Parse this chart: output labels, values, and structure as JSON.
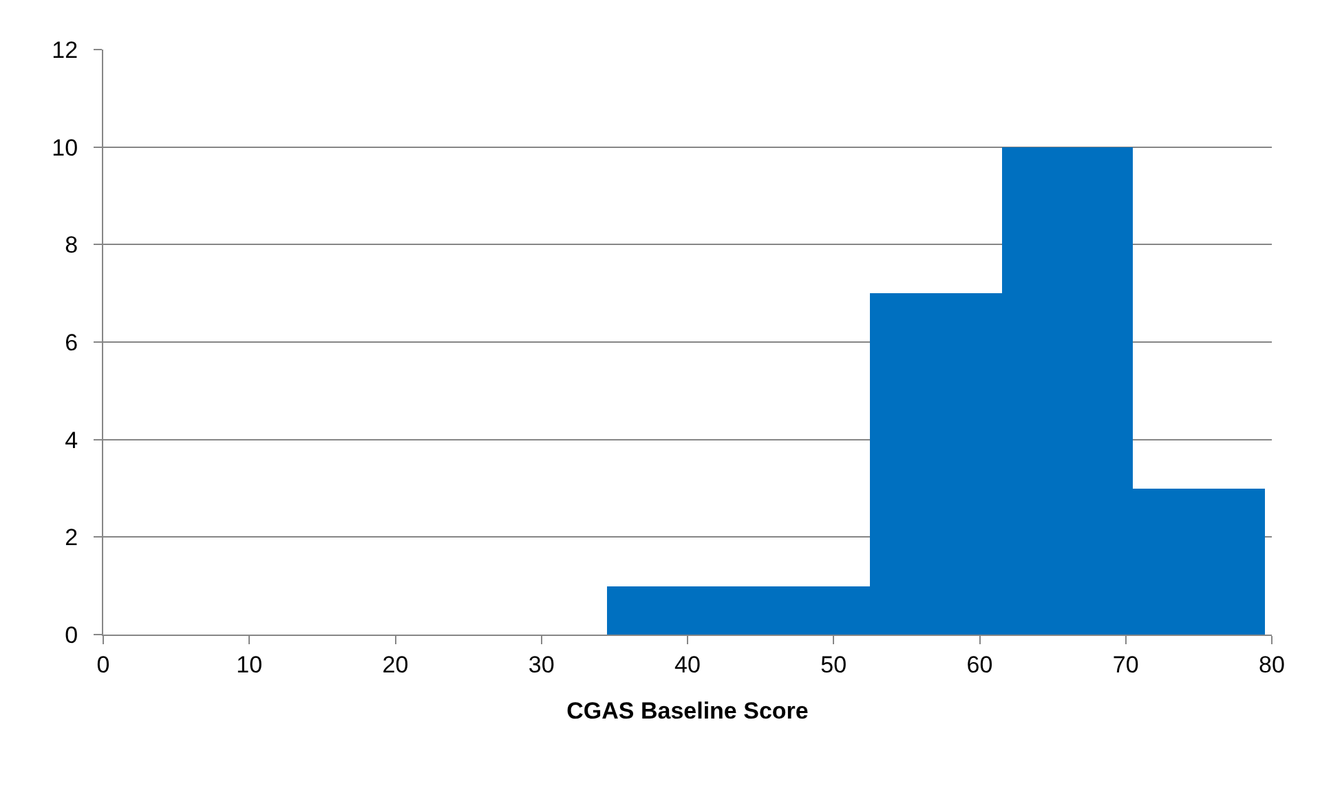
{
  "chart_data": {
    "type": "histogram",
    "xlabel": "CGAS Baseline Score",
    "bins": [
      34.5,
      43.5,
      52.5,
      61.5,
      70.5,
      79.5
    ],
    "values": [
      1,
      1,
      7,
      10,
      3
    ],
    "color": "#0070c0",
    "xlim": [
      0,
      80
    ],
    "xticks": [
      0,
      10,
      20,
      30,
      40,
      50,
      60,
      70,
      80
    ],
    "ylim": [
      0,
      12
    ],
    "yticks": [
      0,
      2,
      4,
      6,
      8,
      10,
      12
    ],
    "grid": "y"
  }
}
